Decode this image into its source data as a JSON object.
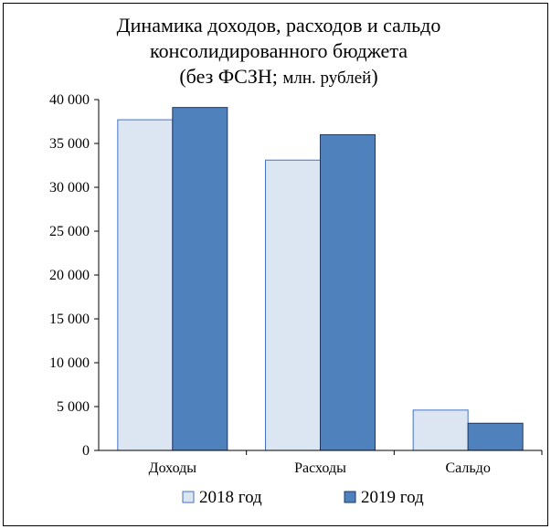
{
  "chart_data": {
    "type": "bar",
    "title_lines": [
      "Динамика доходов, расходов и сальдо",
      "консолидированного бюджета"
    ],
    "title_paren_open": "(без ФСЗН; ",
    "title_units": "млн. рублей",
    "title_paren_close": ")",
    "categories": [
      "Доходы",
      "Расходы",
      "Сальдо"
    ],
    "series": [
      {
        "name": "2018 год",
        "values": [
          37700,
          33100,
          4600
        ],
        "color": "#dce6f2",
        "stroke": "#4472c4"
      },
      {
        "name": "2019 год",
        "values": [
          39100,
          36000,
          3100
        ],
        "color": "#4f81bd",
        "stroke": "#1f3864"
      }
    ],
    "y_ticks": [
      "0",
      "5 000",
      "10 000",
      "15 000",
      "20 000",
      "25 000",
      "30 000",
      "35 000",
      "40 000"
    ],
    "ylim": [
      0,
      40000
    ],
    "grid": false,
    "legend": "bottom"
  }
}
